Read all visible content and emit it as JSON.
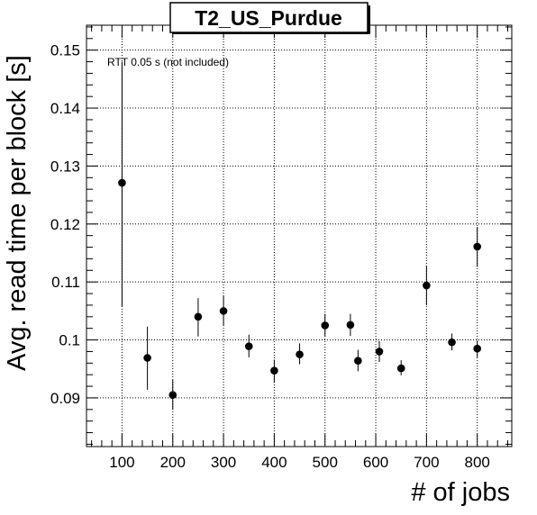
{
  "chart_data": {
    "type": "scatter",
    "title": "T2_US_Purdue",
    "xlabel": "# of jobs",
    "ylabel": "Avg. read time per block [s]",
    "annotation": "RTT 0.05 s (not included)",
    "xlim": [
      30,
      868
    ],
    "ylim": [
      0.0816,
      0.1543
    ],
    "x_ticks": [
      100,
      200,
      300,
      400,
      500,
      600,
      700,
      800
    ],
    "y_ticks": [
      0.09,
      0.1,
      0.11,
      0.12,
      0.13,
      0.14,
      0.15
    ],
    "x_tick_labels": [
      "100",
      "200",
      "300",
      "400",
      "500",
      "600",
      "700",
      "800"
    ],
    "y_tick_labels": [
      "0.09",
      "0.1",
      "0.11",
      "0.12",
      "0.13",
      "0.14",
      "0.15"
    ],
    "grid": true,
    "points": [
      {
        "x": 100,
        "y": 0.1271,
        "ylo": 0.1058,
        "yhi": 0.148
      },
      {
        "x": 150,
        "y": 0.0969,
        "ylo": 0.0914,
        "yhi": 0.1023
      },
      {
        "x": 200,
        "y": 0.0905,
        "ylo": 0.088,
        "yhi": 0.0931
      },
      {
        "x": 250,
        "y": 0.104,
        "ylo": 0.1006,
        "yhi": 0.1072
      },
      {
        "x": 300,
        "y": 0.105,
        "ylo": 0.1024,
        "yhi": 0.1076
      },
      {
        "x": 350,
        "y": 0.0989,
        "ylo": 0.097,
        "yhi": 0.1009
      },
      {
        "x": 400,
        "y": 0.0947,
        "ylo": 0.0927,
        "yhi": 0.0966
      },
      {
        "x": 450,
        "y": 0.0975,
        "ylo": 0.0958,
        "yhi": 0.0994
      },
      {
        "x": 500,
        "y": 0.1025,
        "ylo": 0.1006,
        "yhi": 0.1045
      },
      {
        "x": 550,
        "y": 0.1026,
        "ylo": 0.1007,
        "yhi": 0.1045
      },
      {
        "x": 565,
        "y": 0.0964,
        "ylo": 0.0946,
        "yhi": 0.0983
      },
      {
        "x": 607,
        "y": 0.098,
        "ylo": 0.0962,
        "yhi": 0.0998
      },
      {
        "x": 650,
        "y": 0.0951,
        "ylo": 0.0939,
        "yhi": 0.0965
      },
      {
        "x": 700,
        "y": 0.1094,
        "ylo": 0.106,
        "yhi": 0.1128
      },
      {
        "x": 750,
        "y": 0.0996,
        "ylo": 0.0982,
        "yhi": 0.1011
      },
      {
        "x": 800,
        "y": 0.1161,
        "ylo": 0.1126,
        "yhi": 0.1195
      },
      {
        "x": 800,
        "y": 0.0985,
        "ylo": 0.097,
        "yhi": 0.0999
      }
    ],
    "marker_color": "#000000"
  }
}
